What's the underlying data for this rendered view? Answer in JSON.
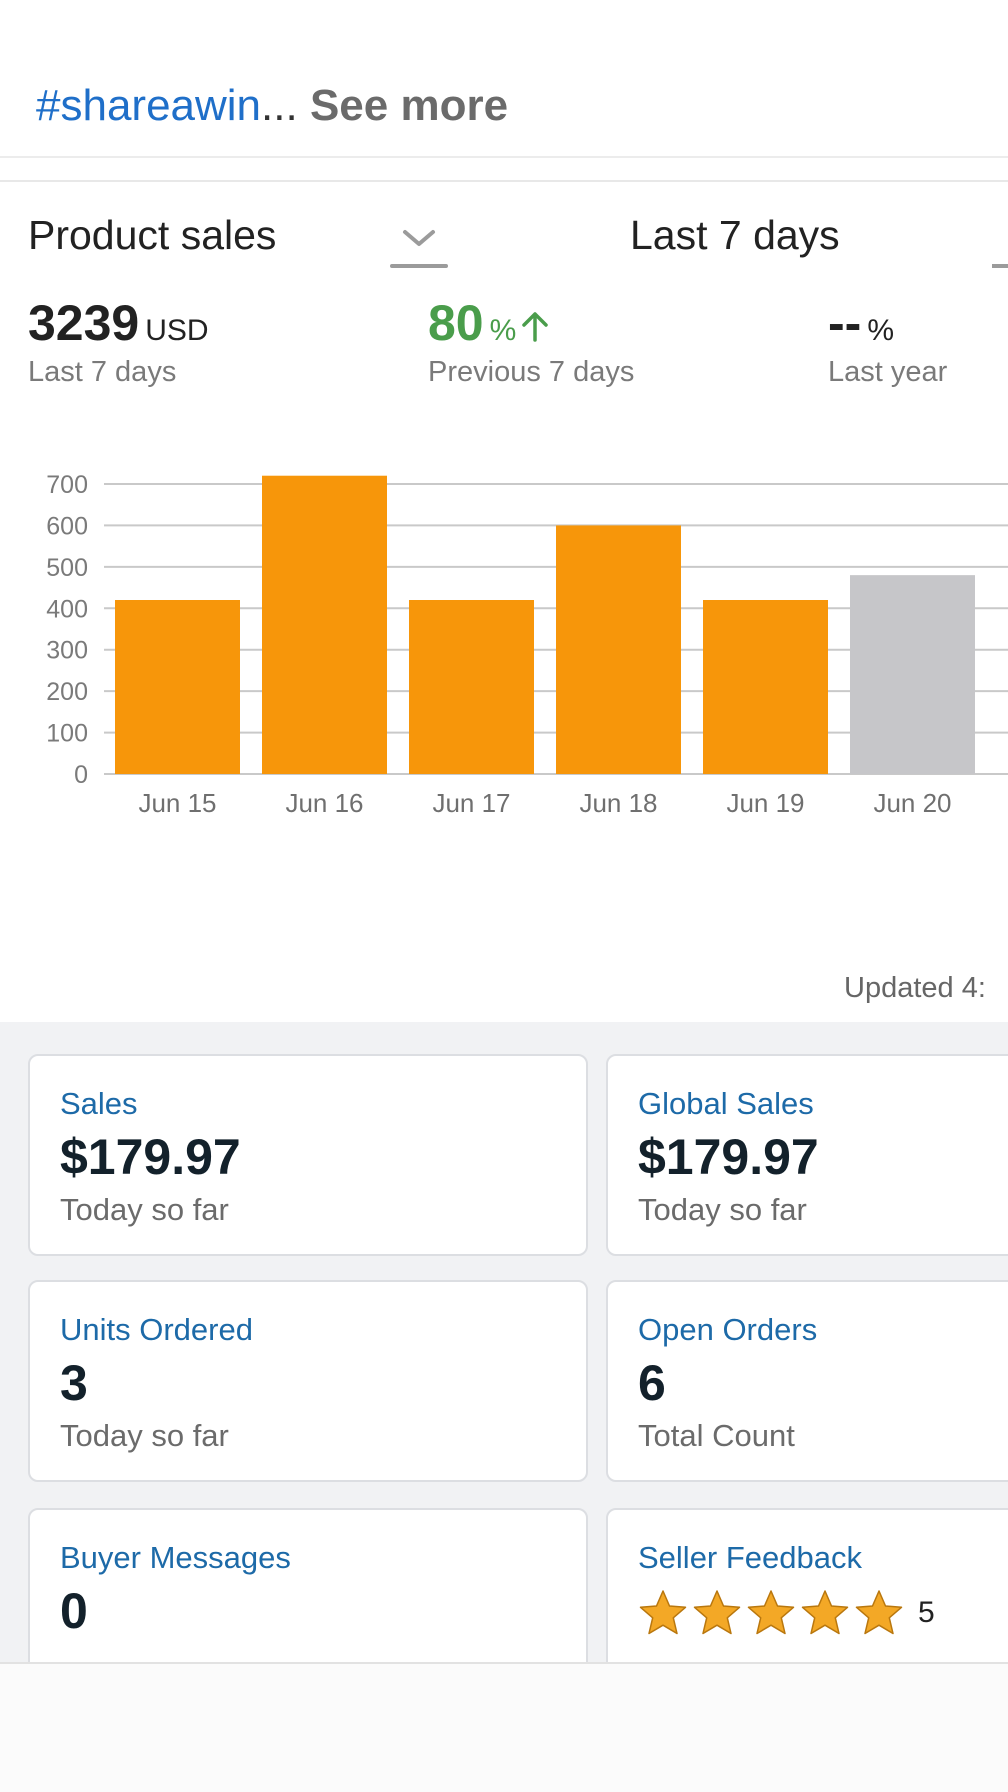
{
  "post": {
    "hashtag": "#shareawin",
    "ellipsis": "...",
    "see_more": "See more"
  },
  "header": {
    "metric_selector": "Product sales",
    "range_selector": "Last 7 days"
  },
  "stats": [
    {
      "value": "3239",
      "unit": "USD",
      "label": "Last 7 days"
    },
    {
      "value": "80",
      "unit": "%",
      "label": "Previous 7 days",
      "trend": "up",
      "color": "#4a9d4b"
    },
    {
      "value": "--",
      "unit": "%",
      "label": "Last year"
    }
  ],
  "chart_data": {
    "type": "bar",
    "categories": [
      "Jun 15",
      "Jun 16",
      "Jun 17",
      "Jun 18",
      "Jun 19",
      "Jun 20"
    ],
    "values": [
      420,
      720,
      420,
      600,
      420,
      480
    ],
    "bar_colors": [
      "#f7960a",
      "#f7960a",
      "#f7960a",
      "#f7960a",
      "#f7960a",
      "#c6c6c9"
    ],
    "yticks": [
      0,
      100,
      200,
      300,
      400,
      500,
      600,
      700
    ],
    "ylim": [
      0,
      700
    ],
    "grid": true,
    "title": "",
    "xlabel": "",
    "ylabel": ""
  },
  "updated": "Updated 4:",
  "tiles": [
    {
      "title": "Sales",
      "value": "$179.97",
      "sub": "Today so far"
    },
    {
      "title": "Global Sales",
      "value": "$179.97",
      "sub": "Today so far"
    },
    {
      "title": "Units Ordered",
      "value": "3",
      "sub": "Today so far"
    },
    {
      "title": "Open Orders",
      "value": "6",
      "sub": "Total Count"
    },
    {
      "title": "Buyer Messages",
      "value": "0",
      "sub": ""
    },
    {
      "title": "Seller Feedback",
      "rating": "5",
      "stars": 5,
      "star_color": "#f3a826"
    }
  ]
}
